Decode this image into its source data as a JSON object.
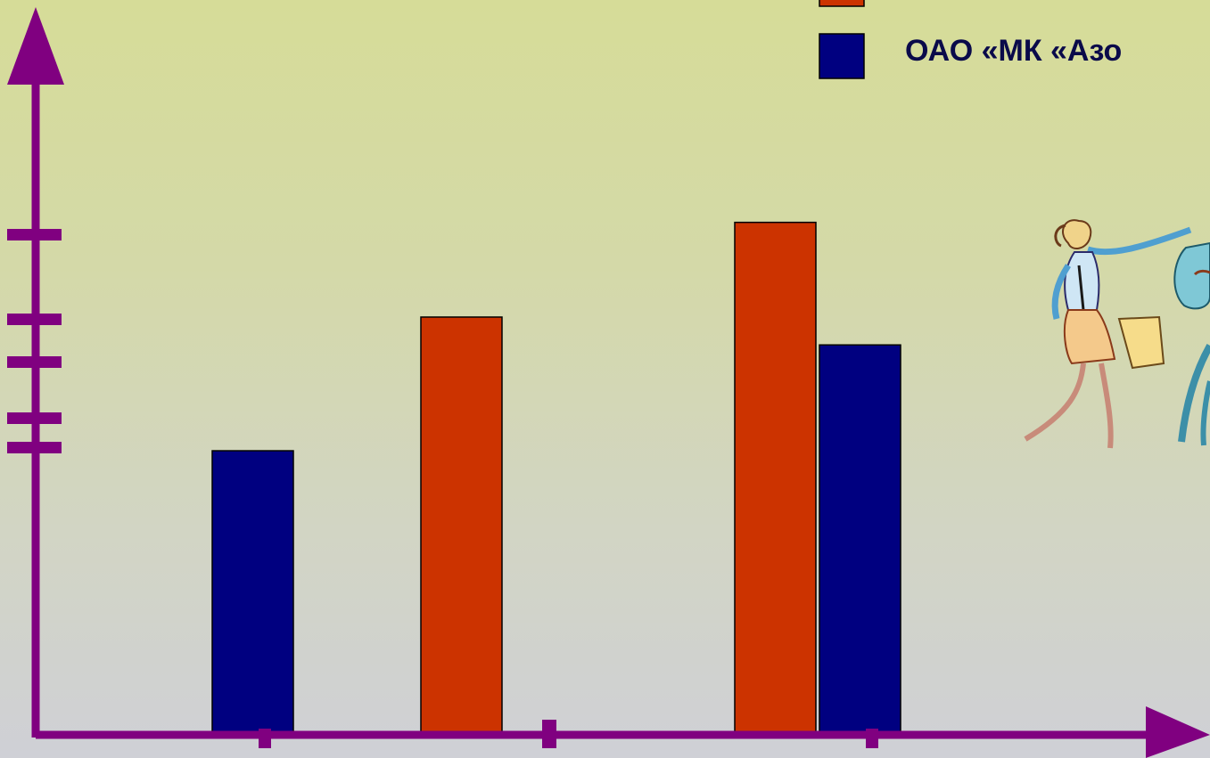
{
  "chart_data": {
    "type": "bar",
    "title": "",
    "xlabel": "",
    "ylabel": "",
    "categories": [
      "",
      "",
      ""
    ],
    "series": [
      {
        "name": "",
        "color": "#cc3300",
        "values": [
          null,
          75,
          92
        ]
      },
      {
        "name": "ОАО «МК «Азо",
        "color": "#000080",
        "values": [
          51,
          null,
          70
        ]
      }
    ],
    "ylim": [
      0,
      130
    ],
    "axis_color": "#800080",
    "legend_position": "top-right"
  },
  "decor": {
    "clipart_icon": "running-businesswoman-clipart"
  }
}
